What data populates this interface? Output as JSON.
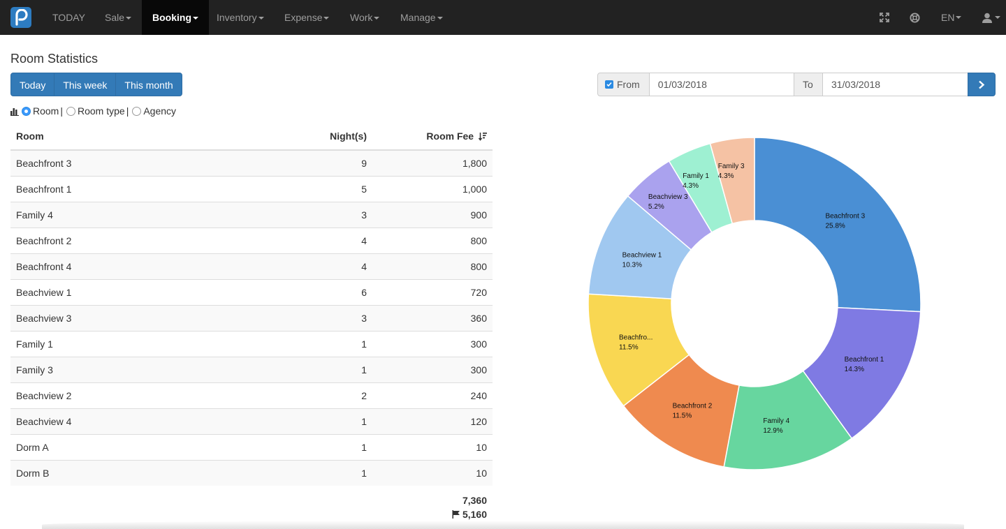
{
  "navbar": {
    "items": [
      {
        "label": "TODAY",
        "dropdown": false
      },
      {
        "label": "Sale",
        "dropdown": true
      },
      {
        "label": "Booking",
        "dropdown": true,
        "active": true
      },
      {
        "label": "Inventory",
        "dropdown": true
      },
      {
        "label": "Expense",
        "dropdown": true
      },
      {
        "label": "Work",
        "dropdown": true
      },
      {
        "label": "Manage",
        "dropdown": true
      }
    ],
    "language": "EN",
    "icons": [
      "fullscreen-icon",
      "lifebuoy-icon",
      "user-icon"
    ]
  },
  "page": {
    "title": "Room Statistics",
    "period_buttons": [
      "Today",
      "This week",
      "This month"
    ],
    "group_by": {
      "options": [
        "Room",
        "Room type",
        "Agency"
      ],
      "selected": "Room",
      "separator": "|"
    },
    "date_filter": {
      "from_label": "From",
      "from_checked": true,
      "from_value": "01/03/2018",
      "to_label": "To",
      "to_value": "31/03/2018"
    }
  },
  "table": {
    "headers": {
      "room": "Room",
      "nights": "Night(s)",
      "fee": "Room Fee"
    },
    "rows": [
      {
        "room": "Beachfront 3",
        "nights": "9",
        "fee": "1,800"
      },
      {
        "room": "Beachfront 1",
        "nights": "5",
        "fee": "1,000"
      },
      {
        "room": "Family 4",
        "nights": "3",
        "fee": "900"
      },
      {
        "room": "Beachfront 2",
        "nights": "4",
        "fee": "800"
      },
      {
        "room": "Beachfront 4",
        "nights": "4",
        "fee": "800"
      },
      {
        "room": "Beachview 1",
        "nights": "6",
        "fee": "720"
      },
      {
        "room": "Beachview 3",
        "nights": "3",
        "fee": "360"
      },
      {
        "room": "Family 1",
        "nights": "1",
        "fee": "300"
      },
      {
        "room": "Family 3",
        "nights": "1",
        "fee": "300"
      },
      {
        "room": "Beachview 2",
        "nights": "2",
        "fee": "240"
      },
      {
        "room": "Beachview 4",
        "nights": "1",
        "fee": "120"
      },
      {
        "room": "Dorm A",
        "nights": "1",
        "fee": "10"
      },
      {
        "room": "Dorm B",
        "nights": "1",
        "fee": "10"
      }
    ],
    "total": "7,360",
    "flag_total": "5,160"
  },
  "chart_data": {
    "type": "pie",
    "donut": true,
    "slices": [
      {
        "label": "Beachfront 3",
        "display": "Beachfront 3",
        "percent": 25.8,
        "pct_text": "25.8%",
        "color": "#4a8fd4"
      },
      {
        "label": "Beachfront 1",
        "display": "Beachfront 1",
        "percent": 14.3,
        "pct_text": "14.3%",
        "color": "#7f7ae3"
      },
      {
        "label": "Family 4",
        "display": "Family 4",
        "percent": 12.9,
        "pct_text": "12.9%",
        "color": "#67d69f"
      },
      {
        "label": "Beachfront 2",
        "display": "Beachfront 2",
        "percent": 11.5,
        "pct_text": "11.5%",
        "color": "#ef8a4f"
      },
      {
        "label": "Beachfront 4",
        "display": "Beachfro...",
        "percent": 11.5,
        "pct_text": "11.5%",
        "color": "#f9d752"
      },
      {
        "label": "Beachview 1",
        "display": "Beachview 1",
        "percent": 10.3,
        "pct_text": "10.3%",
        "color": "#a0c8f0"
      },
      {
        "label": "Beachview 3",
        "display": "Beachview 3",
        "percent": 5.2,
        "pct_text": "5.2%",
        "color": "#aaa2ee"
      },
      {
        "label": "Family 1",
        "display": "Family 1",
        "percent": 4.3,
        "pct_text": "4.3%",
        "color": "#9ef0d2"
      },
      {
        "label": "Family 3",
        "display": "Family 3",
        "percent": 4.3,
        "pct_text": "4.3%",
        "color": "#f5c2a4"
      }
    ]
  }
}
